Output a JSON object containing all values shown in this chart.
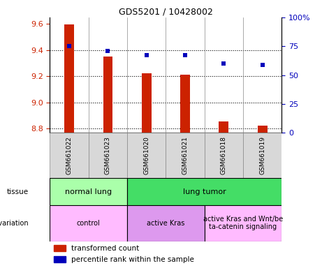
{
  "title": "GDS5201 / 10428002",
  "samples": [
    "GSM661022",
    "GSM661023",
    "GSM661020",
    "GSM661021",
    "GSM661018",
    "GSM661019"
  ],
  "transformed_counts": [
    9.595,
    9.353,
    9.225,
    9.215,
    8.855,
    8.825
  ],
  "percentile_ranks": [
    75,
    71,
    67,
    67,
    60,
    59
  ],
  "bar_color": "#cc2200",
  "dot_color": "#0000bb",
  "ylim_left": [
    8.77,
    9.65
  ],
  "ylim_right": [
    0,
    100
  ],
  "yticks_left": [
    8.8,
    9.0,
    9.2,
    9.4,
    9.6
  ],
  "yticks_right": [
    0,
    25,
    50,
    75,
    100
  ],
  "tissue_groups": [
    {
      "label": "normal lung",
      "cols": [
        0,
        1
      ],
      "color": "#aaffaa"
    },
    {
      "label": "lung tumor",
      "cols": [
        2,
        3,
        4,
        5
      ],
      "color": "#44dd66"
    }
  ],
  "genotype_groups": [
    {
      "label": "control",
      "cols": [
        0,
        1
      ],
      "color": "#ffbbff"
    },
    {
      "label": "active Kras",
      "cols": [
        2,
        3
      ],
      "color": "#dd99ee"
    },
    {
      "label": "active Kras and Wnt/be\nta-catenin signaling",
      "cols": [
        4,
        5
      ],
      "color": "#ffbbff"
    }
  ],
  "legend_items": [
    {
      "label": "transformed count",
      "color": "#cc2200"
    },
    {
      "label": "percentile rank within the sample",
      "color": "#0000bb"
    }
  ],
  "bar_width": 0.25
}
